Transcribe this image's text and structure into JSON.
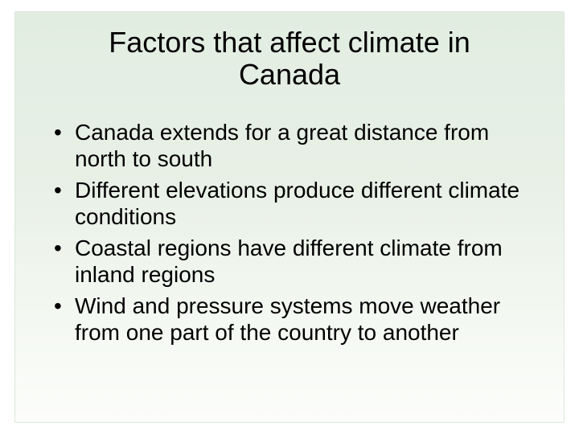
{
  "slide": {
    "title": "Factors that affect climate in Canada",
    "bullets": [
      "Canada extends for a great distance from north to south",
      "Different elevations produce different climate conditions",
      "Coastal regions have different climate from inland regions",
      "Wind and pressure systems move weather from one part of the country to another"
    ],
    "background_gradient_top": "#e2ede2",
    "background_gradient_bottom": "#fcfdfb",
    "title_fontsize": 36,
    "body_fontsize": 28,
    "text_color": "#000000",
    "panel_border_color": "#dde6db"
  }
}
